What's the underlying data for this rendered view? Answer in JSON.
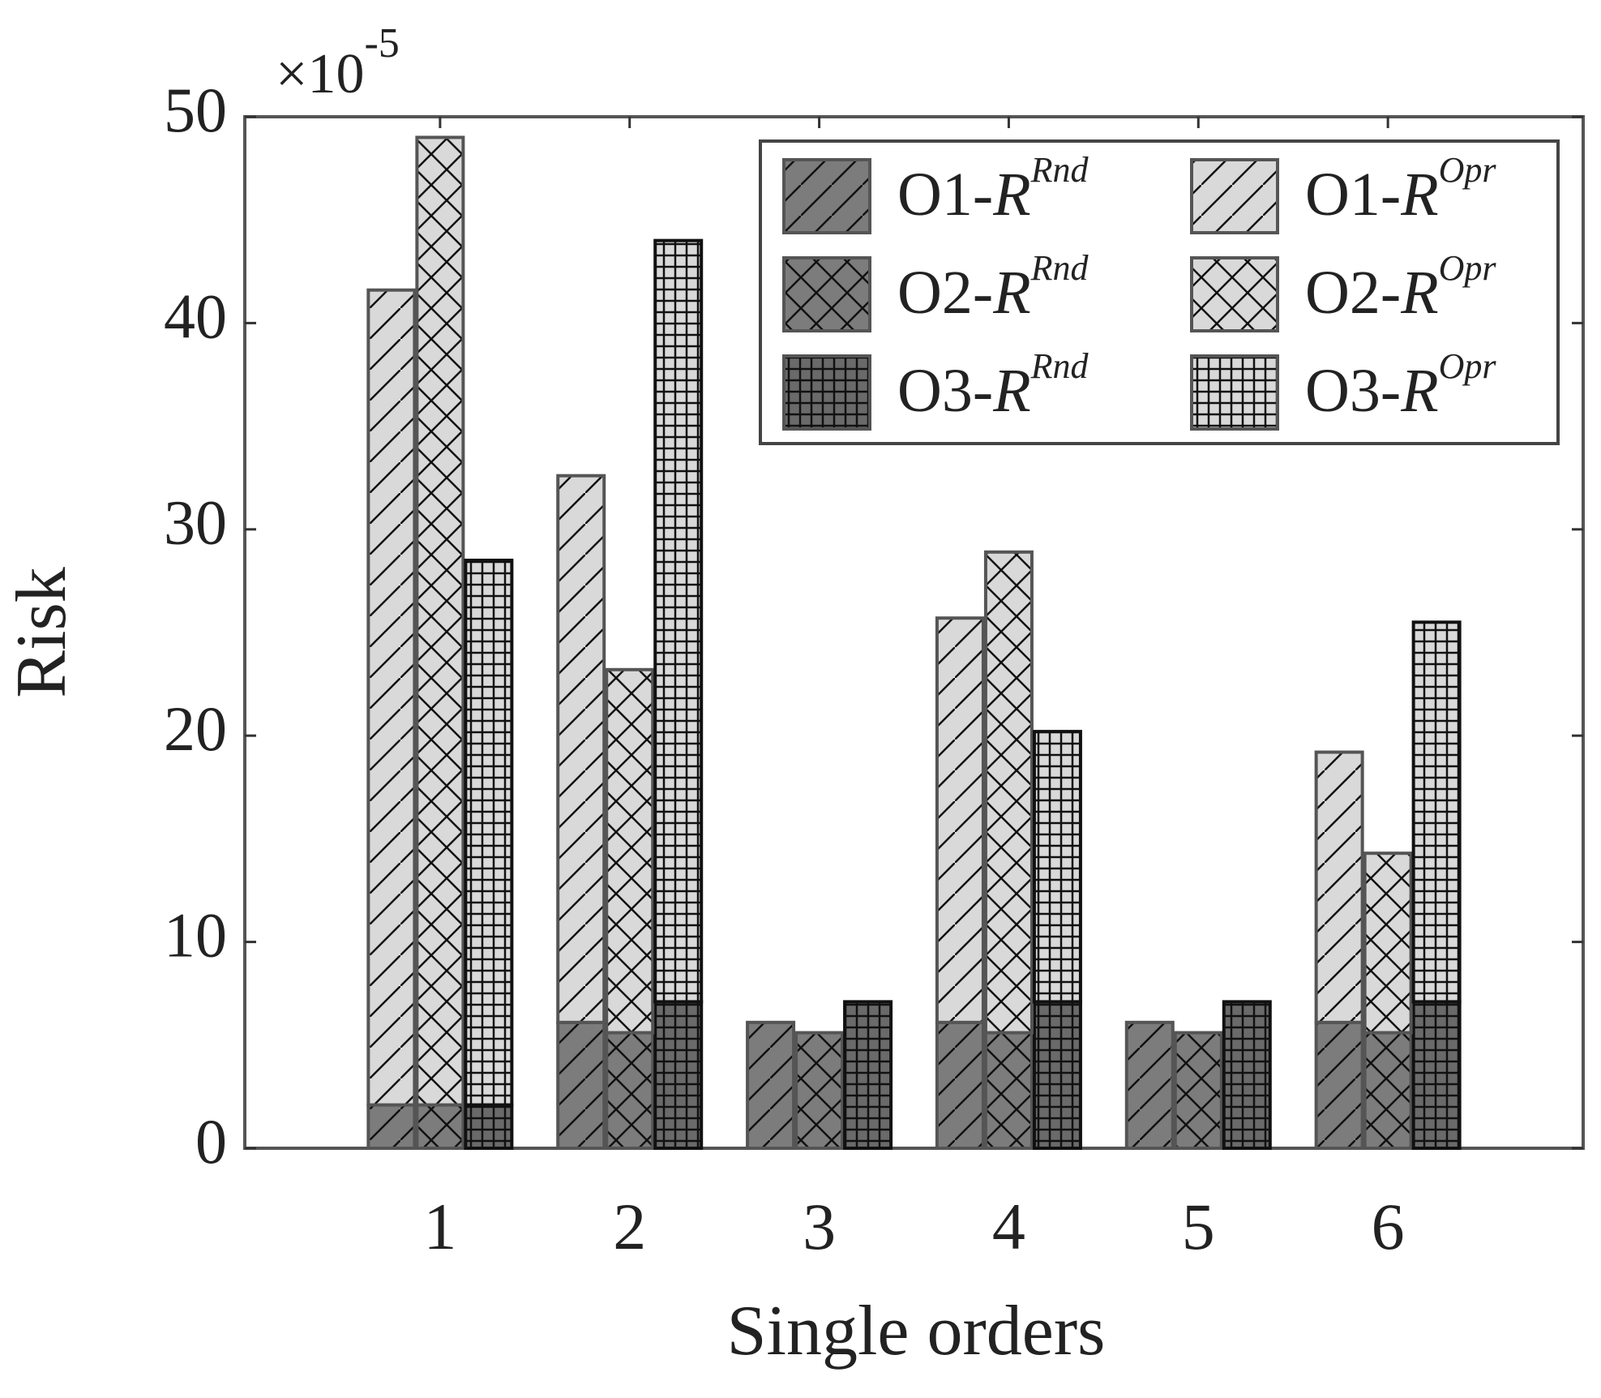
{
  "chart_data": {
    "type": "stacked_grouped_bar",
    "xlabel": "Single orders",
    "ylabel": "Risk",
    "y_multiplier": {
      "base": "×10",
      "exponent": "-5"
    },
    "categories": [
      "1",
      "2",
      "3",
      "4",
      "5",
      "6"
    ],
    "ylim": [
      0,
      50
    ],
    "yticks": [
      0,
      10,
      20,
      30,
      40,
      50
    ],
    "series": [
      {
        "name": "O1-",
        "symbol": "R",
        "superscript": "Rnd",
        "group": 0,
        "pattern": "diagonal",
        "color": "#7c7c7c",
        "values": [
          2.1,
          6.1,
          6.1,
          6.1,
          6.1,
          6.1
        ]
      },
      {
        "name": "O2-",
        "symbol": "R",
        "superscript": "Rnd",
        "group": 1,
        "pattern": "cross",
        "color": "#7c7c7c",
        "values": [
          2.1,
          5.6,
          5.6,
          5.6,
          5.6,
          5.6
        ]
      },
      {
        "name": "O3-",
        "symbol": "R",
        "superscript": "Rnd",
        "group": 2,
        "pattern": "grid",
        "color": "#6a6a6a",
        "values": [
          2.1,
          7.1,
          7.1,
          7.1,
          7.1,
          7.1
        ]
      },
      {
        "name": "O1-",
        "symbol": "R",
        "superscript": "Opr",
        "group": 0,
        "pattern": "diagonal",
        "color": "#d9d9d9",
        "values": [
          39.5,
          26.5,
          0,
          19.6,
          0,
          13.1
        ]
      },
      {
        "name": "O2-",
        "symbol": "R",
        "superscript": "Opr",
        "group": 1,
        "pattern": "cross",
        "color": "#d9d9d9",
        "values": [
          46.9,
          17.6,
          0,
          23.3,
          0,
          8.7
        ]
      },
      {
        "name": "O3-",
        "symbol": "R",
        "superscript": "Opr",
        "group": 2,
        "pattern": "grid",
        "color": "#d9d9d9",
        "values": [
          26.4,
          36.9,
          0,
          13.1,
          0,
          18.4
        ]
      }
    ]
  }
}
